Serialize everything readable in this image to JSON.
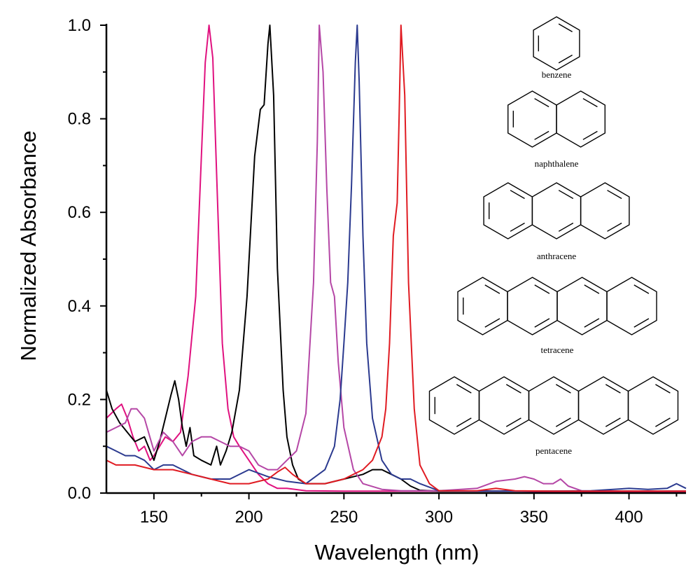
{
  "chart_data": {
    "type": "line",
    "title": "",
    "xlabel": "Wavelength (nm)",
    "ylabel": "Normalized Absorbance",
    "xlim": [
      125,
      430
    ],
    "ylim": [
      0,
      1.0
    ],
    "x_ticks": [
      150,
      200,
      250,
      300,
      350,
      400
    ],
    "y_ticks": [
      0.0,
      0.2,
      0.4,
      0.6,
      0.8,
      1.0
    ],
    "x_tick_labels": [
      "150",
      "200",
      "250",
      "300",
      "350",
      "400"
    ],
    "y_tick_labels": [
      "0.0",
      "0.2",
      "0.4",
      "0.6",
      "0.8",
      "1.0"
    ],
    "grid": false,
    "legend": "none; molecule structures drawn at right",
    "series": [
      {
        "label_ref": "benzene",
        "color": "#e0117f",
        "x": [
          125,
          130,
          133,
          136,
          139,
          142,
          145,
          148,
          150,
          153,
          156,
          160,
          164,
          168,
          172,
          175,
          177,
          179,
          181,
          183,
          186,
          189,
          192,
          195,
          200,
          205,
          210,
          215,
          220,
          230,
          250,
          270,
          300,
          320,
          330,
          340,
          350,
          360,
          380,
          400,
          430
        ],
        "y": [
          0.16,
          0.18,
          0.19,
          0.16,
          0.12,
          0.09,
          0.1,
          0.07,
          0.08,
          0.1,
          0.12,
          0.11,
          0.13,
          0.25,
          0.42,
          0.72,
          0.92,
          1.0,
          0.93,
          0.68,
          0.32,
          0.18,
          0.12,
          0.1,
          0.07,
          0.04,
          0.02,
          0.01,
          0.01,
          0.005,
          0.004,
          0.004,
          0.004,
          0.004,
          0.004,
          0.004,
          0.003,
          0.003,
          0.003,
          0.003,
          0.003
        ]
      },
      {
        "label_ref": "naphthalene",
        "color": "#000000",
        "x": [
          125,
          128,
          132,
          136,
          140,
          145,
          150,
          153,
          156,
          159,
          161,
          163,
          165,
          167,
          169,
          171,
          175,
          180,
          183,
          185,
          188,
          191,
          195,
          199,
          203,
          206,
          208,
          210,
          211,
          213,
          215,
          218,
          220,
          223,
          226,
          230,
          240,
          250,
          260,
          265,
          270,
          275,
          280,
          285,
          290,
          300,
          310,
          330,
          350,
          400,
          430
        ],
        "y": [
          0.22,
          0.18,
          0.15,
          0.13,
          0.11,
          0.12,
          0.07,
          0.11,
          0.16,
          0.21,
          0.24,
          0.2,
          0.14,
          0.1,
          0.14,
          0.08,
          0.07,
          0.06,
          0.1,
          0.06,
          0.09,
          0.13,
          0.22,
          0.42,
          0.72,
          0.82,
          0.83,
          0.96,
          1.0,
          0.85,
          0.48,
          0.22,
          0.12,
          0.06,
          0.03,
          0.02,
          0.02,
          0.03,
          0.04,
          0.05,
          0.05,
          0.04,
          0.03,
          0.015,
          0.006,
          0.004,
          0.004,
          0.004,
          0.004,
          0.004,
          0.004
        ]
      },
      {
        "label_ref": "anthracene",
        "color": "#b547a6",
        "x": [
          125,
          130,
          135,
          138,
          141,
          145,
          150,
          155,
          160,
          165,
          170,
          175,
          180,
          185,
          190,
          195,
          200,
          205,
          210,
          215,
          220,
          225,
          230,
          234,
          236,
          237,
          239,
          241,
          243,
          245,
          247,
          250,
          255,
          260,
          270,
          280,
          300,
          320,
          330,
          340,
          345,
          350,
          355,
          360,
          364,
          368,
          375,
          400,
          430
        ],
        "y": [
          0.13,
          0.14,
          0.15,
          0.18,
          0.18,
          0.16,
          0.09,
          0.13,
          0.11,
          0.08,
          0.11,
          0.12,
          0.12,
          0.11,
          0.1,
          0.1,
          0.09,
          0.06,
          0.05,
          0.05,
          0.07,
          0.09,
          0.17,
          0.45,
          0.75,
          1.0,
          0.9,
          0.65,
          0.45,
          0.42,
          0.28,
          0.14,
          0.05,
          0.02,
          0.008,
          0.005,
          0.005,
          0.01,
          0.025,
          0.03,
          0.035,
          0.03,
          0.02,
          0.02,
          0.03,
          0.015,
          0.005,
          0.004,
          0.004
        ]
      },
      {
        "label_ref": "tetracene",
        "color": "#2b3a8f",
        "x": [
          125,
          130,
          135,
          140,
          145,
          150,
          155,
          160,
          165,
          170,
          175,
          180,
          190,
          200,
          210,
          220,
          230,
          240,
          245,
          248,
          250,
          252,
          254,
          256,
          257,
          258,
          260,
          262,
          265,
          270,
          275,
          280,
          285,
          290,
          300,
          320,
          350,
          380,
          400,
          410,
          420,
          425,
          430
        ],
        "y": [
          0.1,
          0.09,
          0.08,
          0.08,
          0.07,
          0.05,
          0.06,
          0.06,
          0.05,
          0.04,
          0.035,
          0.03,
          0.03,
          0.05,
          0.035,
          0.025,
          0.02,
          0.05,
          0.1,
          0.2,
          0.32,
          0.45,
          0.66,
          0.92,
          1.0,
          0.88,
          0.55,
          0.32,
          0.16,
          0.07,
          0.04,
          0.03,
          0.03,
          0.02,
          0.005,
          0.004,
          0.004,
          0.005,
          0.01,
          0.008,
          0.01,
          0.02,
          0.01
        ]
      },
      {
        "label_ref": "pentacene",
        "color": "#e01b22",
        "x": [
          125,
          130,
          140,
          150,
          155,
          160,
          170,
          180,
          190,
          200,
          210,
          215,
          219,
          223,
          230,
          240,
          250,
          260,
          265,
          270,
          272,
          274,
          276,
          278,
          279,
          280,
          282,
          284,
          287,
          290,
          295,
          300,
          320,
          330,
          340,
          360,
          400,
          430
        ],
        "y": [
          0.07,
          0.06,
          0.06,
          0.05,
          0.05,
          0.05,
          0.04,
          0.03,
          0.02,
          0.02,
          0.03,
          0.045,
          0.055,
          0.04,
          0.02,
          0.02,
          0.03,
          0.05,
          0.07,
          0.12,
          0.18,
          0.32,
          0.55,
          0.62,
          0.8,
          1.0,
          0.85,
          0.45,
          0.18,
          0.06,
          0.02,
          0.005,
          0.005,
          0.01,
          0.005,
          0.004,
          0.004,
          0.004
        ]
      }
    ],
    "annotations": [
      "benzene",
      "naphthalene",
      "anthracene",
      "tetracene",
      "pentacene"
    ]
  }
}
